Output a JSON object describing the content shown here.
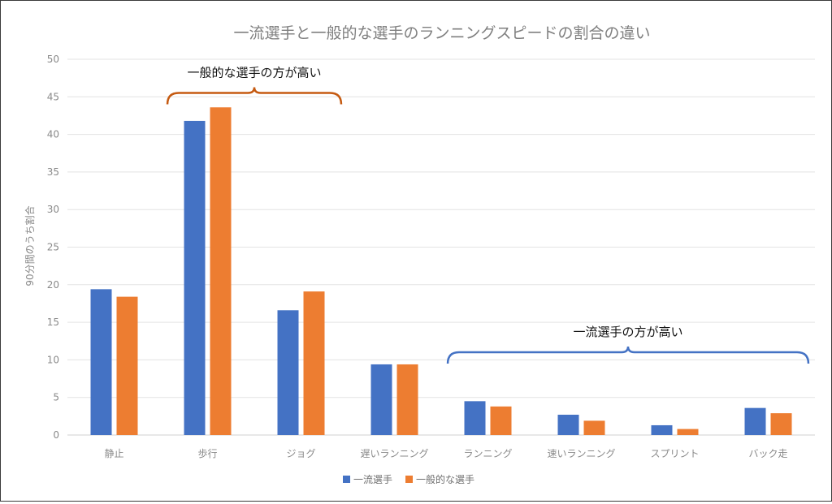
{
  "chart_data": {
    "type": "bar",
    "title": "一流選手と一般的な選手のランニングスピードの割合の違い",
    "xlabel": "",
    "ylabel": "90分間のうち割合",
    "ylim": [
      0,
      50
    ],
    "yticks": [
      0,
      5,
      10,
      15,
      20,
      25,
      30,
      35,
      40,
      45,
      50
    ],
    "grid": true,
    "legend_position": "bottom",
    "categories": [
      "静止",
      "歩行",
      "ジョグ",
      "遅いランニング",
      "ランニング",
      "速いランニング",
      "スプリント",
      "バック走"
    ],
    "series": [
      {
        "name": "一流選手",
        "color": "#4472C4",
        "values": [
          19.4,
          41.8,
          16.6,
          9.4,
          4.5,
          2.7,
          1.3,
          3.6
        ]
      },
      {
        "name": "一般的な選手",
        "color": "#ED7D31",
        "values": [
          18.4,
          43.6,
          19.1,
          9.4,
          3.8,
          1.9,
          0.8,
          2.9
        ]
      }
    ],
    "annotations": [
      {
        "text": "一般的な選手の方が高い",
        "color": "#C55A11",
        "from_category": 1,
        "to_category": 2,
        "y": 44
      },
      {
        "text": "一流選手の方が高い",
        "color": "#4472C4",
        "from_category": 4,
        "to_category": 7,
        "y": 9.5
      }
    ]
  }
}
